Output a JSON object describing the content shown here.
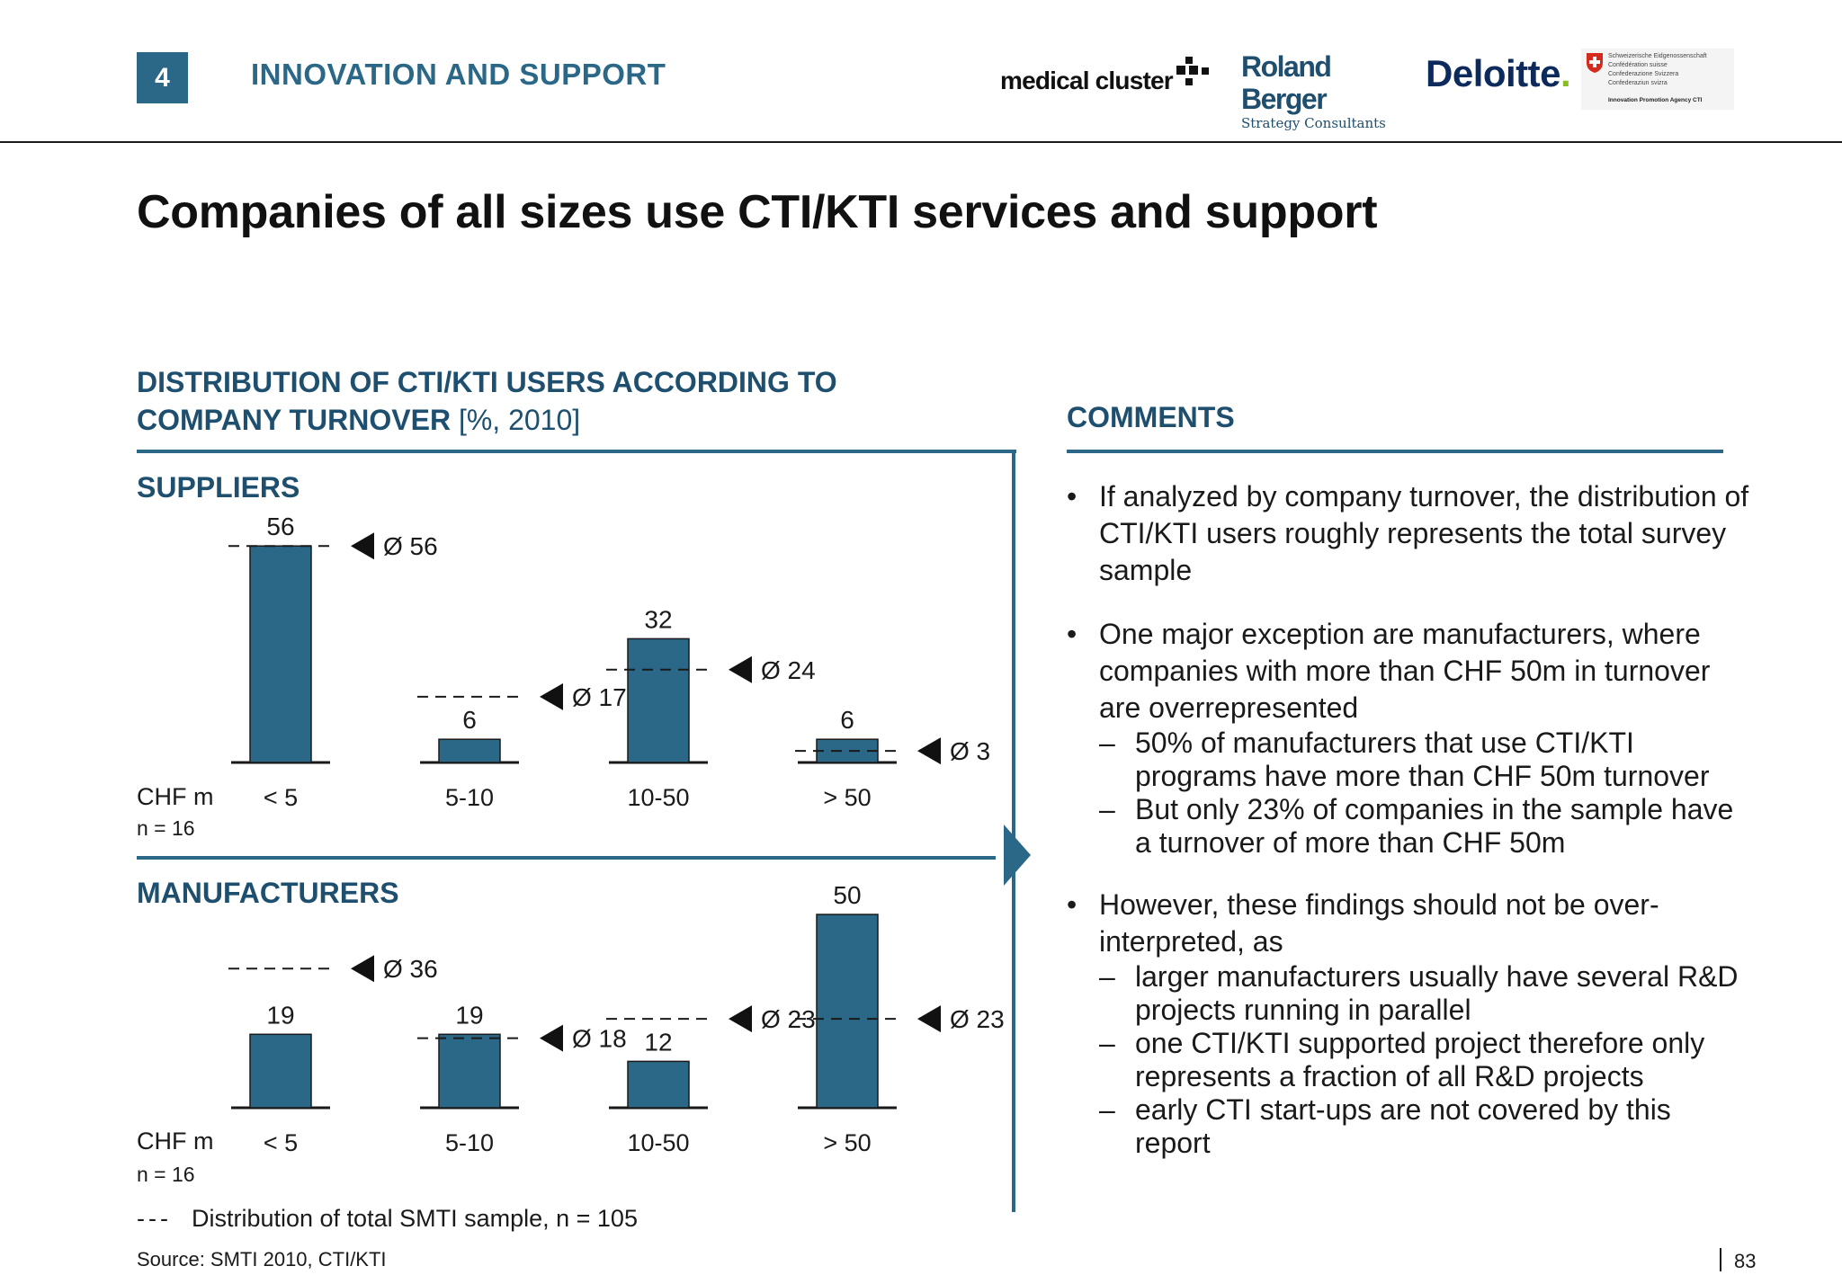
{
  "header": {
    "section_number": "4",
    "section_title": "INNOVATION AND SUPPORT",
    "logos": {
      "medical_cluster": "medical cluster",
      "roland_berger_line1": "Roland Berger",
      "roland_berger_line2": "Strategy Consultants",
      "deloitte": "Deloitte",
      "deloitte_dot": ".",
      "swiss_conf_lines": [
        "Schweizerische Eidgenossenschaft",
        "Confédération suisse",
        "Confederazione Svizzera",
        "Confederaziun svizra"
      ],
      "swiss_conf_agency": "Innovation Promotion Agency CTI"
    }
  },
  "page_title": "Companies of all sizes use CTI/KTI services and support",
  "chart_heading": {
    "line1": "DISTRIBUTION OF CTI/KTI USERS ACCORDING TO",
    "line2": "COMPANY TURNOVER",
    "unit": "[%, 2010]"
  },
  "chart_data": [
    {
      "type": "bar",
      "title": "SUPPLIERS",
      "axis_unit": "CHF m",
      "sample": "n = 16",
      "categories": [
        "< 5",
        "5-10",
        "10-50",
        "> 50"
      ],
      "values": [
        56,
        6,
        32,
        6
      ],
      "average_values": [
        56,
        17,
        24,
        3
      ],
      "average_labels": [
        "Ø 56",
        "Ø 17",
        "Ø 24",
        "Ø 3"
      ],
      "ylim": [
        0,
        60
      ]
    },
    {
      "type": "bar",
      "title": "MANUFACTURERS",
      "axis_unit": "CHF m",
      "sample": "n = 16",
      "categories": [
        "< 5",
        "5-10",
        "10-50",
        "> 50"
      ],
      "values": [
        19,
        19,
        12,
        50
      ],
      "average_values": [
        36,
        18,
        23,
        23
      ],
      "average_labels": [
        "Ø 36",
        "Ø 18",
        "Ø 23",
        "Ø 23"
      ],
      "ylim": [
        0,
        60
      ]
    }
  ],
  "legend": {
    "marker": "---",
    "text": "Distribution of total SMTI sample, n = 105"
  },
  "source": "Source:  SMTI 2010, CTI/KTI",
  "comments": {
    "heading": "COMMENTS",
    "bullets": [
      {
        "text": "If analyzed by company turnover, the distribution of CTI/KTI users roughly represents the total survey sample",
        "subs": []
      },
      {
        "text": "One major exception are manufacturers, where companies with more than CHF 50m in turnover are overrepresented",
        "subs": [
          "50% of manufacturers that use CTI/KTI programs have more than CHF 50m turnover",
          "But only 23% of companies in the sample have a turnover of more than CHF 50m"
        ]
      },
      {
        "text": "However, these findings should not be over-interpreted, as",
        "subs": [
          "larger manufacturers usually have several R&D projects running in parallel",
          "one CTI/KTI supported project therefore only represents a fraction of all R&D projects",
          "early CTI start-ups are not covered by this report"
        ]
      }
    ]
  },
  "page_number": "83",
  "colors": {
    "accent": "#2b6888",
    "heading": "#1e4f6e",
    "bar": "#2b6888"
  }
}
